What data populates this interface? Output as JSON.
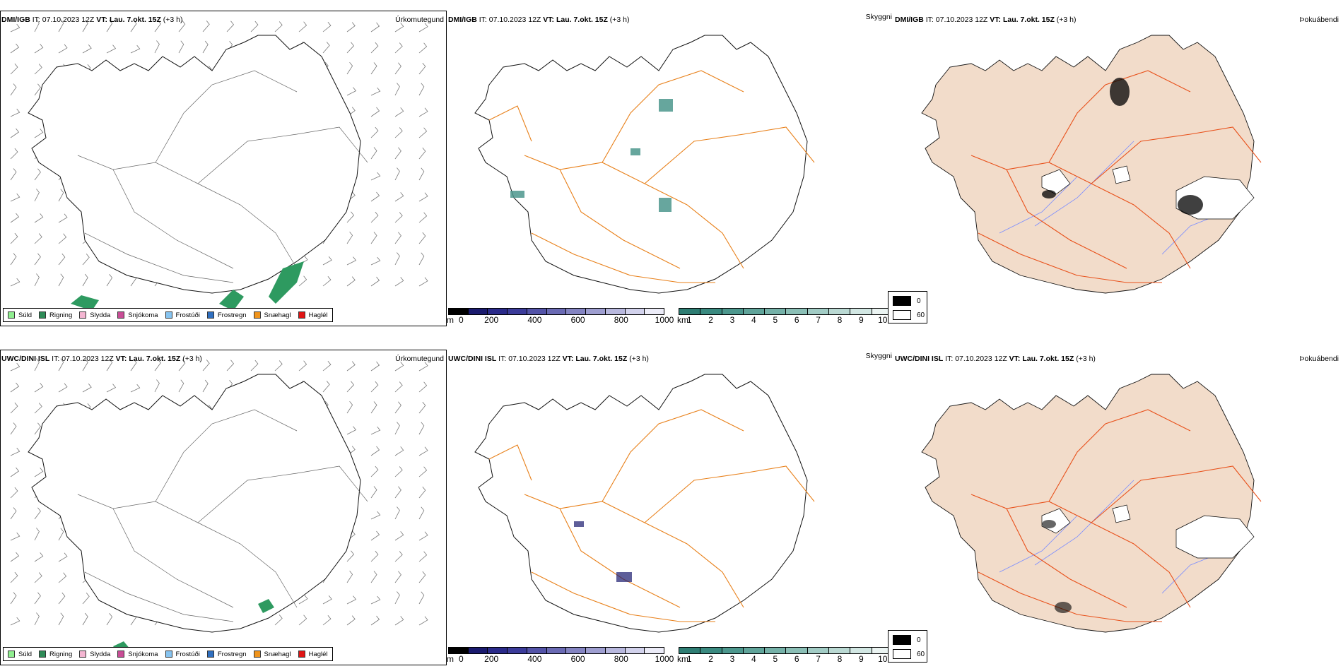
{
  "rows": [
    {
      "model": "DMI/IGB",
      "it_label": "IT:",
      "it_value": "07.10.2023 12Z",
      "vt_label": "VT:",
      "vt_value": "Lau. 7.okt. 15Z",
      "offset": "(+3 h)"
    },
    {
      "model": "UWC/DINI ISL",
      "it_label": "IT:",
      "it_value": "07.10.2023 12Z",
      "vt_label": "VT:",
      "vt_value": "Lau. 7.okt. 15Z",
      "offset": "(+3 h)"
    }
  ],
  "panel_types": {
    "precip": "Úrkomutegund",
    "visibility": "Skyggni",
    "fog": "Þokuábendi"
  },
  "precip_legend": [
    {
      "label": "Súld",
      "color": "#90ee90"
    },
    {
      "label": "Rigning",
      "color": "#2e8b57"
    },
    {
      "label": "Slydda",
      "color": "#f4b6d2"
    },
    {
      "label": "Snjókoma",
      "color": "#c84d96"
    },
    {
      "label": "Frostúði",
      "color": "#87c4f0"
    },
    {
      "label": "Frostregn",
      "color": "#2f6fbf"
    },
    {
      "label": "Snæhagl",
      "color": "#f0941c"
    },
    {
      "label": "Haglél",
      "color": "#e01414"
    }
  ],
  "elevation_bar": {
    "unit": "m",
    "ticks": [
      "0",
      "200",
      "400",
      "600",
      "800",
      "1000"
    ],
    "colors": [
      "#000000",
      "#1a1a6e",
      "#2a2a8a",
      "#3b3b9a",
      "#5353a8",
      "#6a6ab4",
      "#8484c2",
      "#9e9ed0",
      "#b8b8de",
      "#d2d2ec",
      "#ececf8"
    ]
  },
  "visibility_bar": {
    "unit": "km",
    "ticks": [
      "1",
      "2",
      "3",
      "4",
      "5",
      "6",
      "7",
      "8",
      "9",
      "10"
    ],
    "colors": [
      "#2e7d73",
      "#3a8a80",
      "#4c978d",
      "#60a49a",
      "#75b1a8",
      "#8bbfb6",
      "#a2ccc5",
      "#bad9d3",
      "#d2e7e3",
      "#ebf4f2"
    ]
  },
  "fog_legend": [
    {
      "label": "0",
      "color": "#000000"
    },
    {
      "label": "60",
      "color": "#ffffff"
    }
  ],
  "colors": {
    "road": "#e8801a",
    "fog_land": "#f2dcca",
    "fog_road": "#e8501a",
    "river": "#7a8cff",
    "rain": "#2e9a60"
  }
}
